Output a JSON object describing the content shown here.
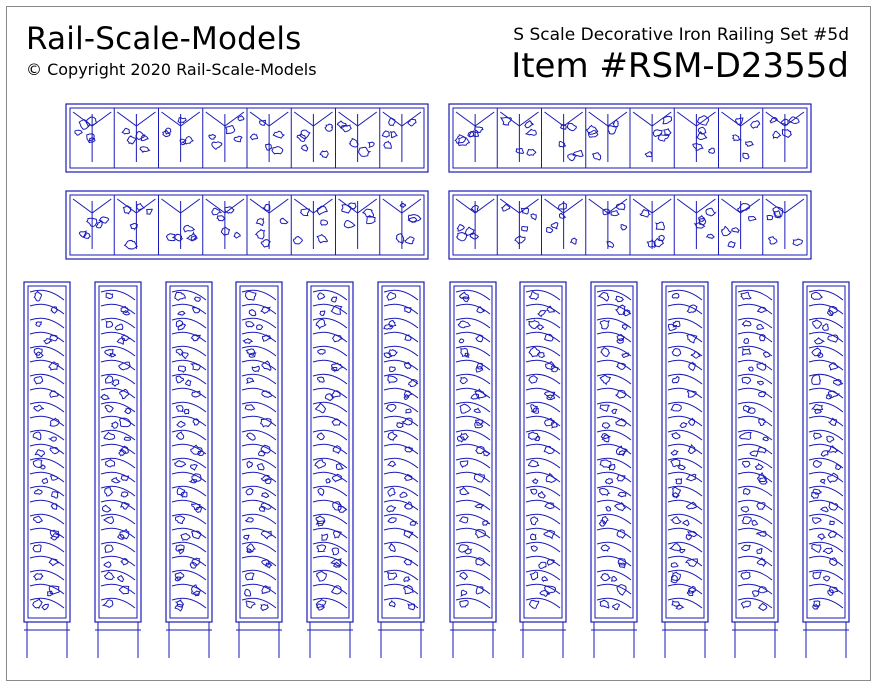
{
  "header": {
    "brand": "Rail-Scale-Models",
    "copyright": "© Copyright 2020 Rail-Scale-Models",
    "set_name": "S Scale Decorative Iron Railing Set #5d",
    "item_number": "Item #RSM-D2355d"
  },
  "colors": {
    "line": "#1a1ab8",
    "border": "#8a8a8a",
    "background": "#ffffff"
  },
  "parts": {
    "horizontal_panel_count": 4,
    "vertical_post_count": 12
  }
}
